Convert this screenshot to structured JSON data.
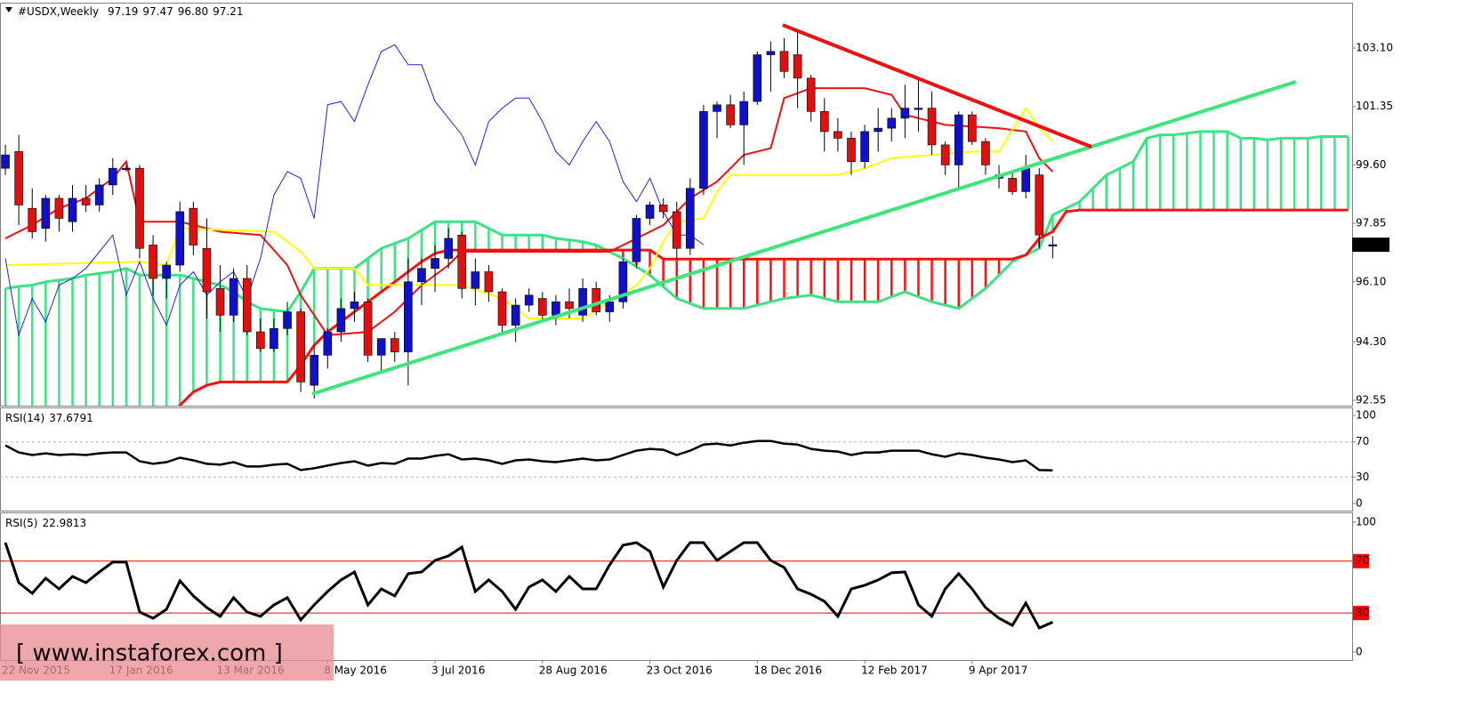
{
  "watermark": "[ www.instaforex.com ]",
  "chart_data": [
    {
      "type": "candlestick",
      "title": "#USDX,Weekly",
      "header_values": [
        "97.19",
        "97.47",
        "96.80",
        "97.21"
      ],
      "xlim": [
        -0.4,
        100.3
      ],
      "ylim": [
        92.39,
        104.46
      ],
      "yticks": [
        {
          "value": 103.1,
          "label": "103.10"
        },
        {
          "value": 101.35,
          "label": "101.35"
        },
        {
          "value": 99.6,
          "label": "99.60"
        },
        {
          "value": 97.85,
          "label": "97.85"
        },
        {
          "value": 96.1,
          "label": "96.10"
        },
        {
          "value": 94.3,
          "label": "94.30"
        },
        {
          "value": 92.55,
          "label": "92.55"
        }
      ],
      "xticks": [
        {
          "value": 0,
          "label": "22 Nov 2015"
        },
        {
          "value": 8,
          "label": "17 Jan 2016"
        },
        {
          "value": 16,
          "label": "13 Mar 2016"
        },
        {
          "value": 24,
          "label": "8 May 2016"
        },
        {
          "value": 32,
          "label": "3 Jul 2016"
        },
        {
          "value": 40,
          "label": "28 Aug 2016"
        },
        {
          "value": 48,
          "label": "23 Oct 2016"
        },
        {
          "value": 56,
          "label": "18 Dec 2016"
        },
        {
          "value": 64,
          "label": "12 Feb 2017"
        },
        {
          "value": 72,
          "label": "9 Apr 2017"
        }
      ],
      "up_color": "#1010c8",
      "down_color": "#e01010",
      "ohlc": [
        [
          99.5,
          100.2,
          99.3,
          99.9
        ],
        [
          100.0,
          100.5,
          97.8,
          98.4
        ],
        [
          98.3,
          98.9,
          97.4,
          97.6
        ],
        [
          97.7,
          98.7,
          97.3,
          98.6
        ],
        [
          98.6,
          98.7,
          97.6,
          98.0
        ],
        [
          97.9,
          99.0,
          97.6,
          98.6
        ],
        [
          98.6,
          99.0,
          98.2,
          98.4
        ],
        [
          98.4,
          99.2,
          98.2,
          99.0
        ],
        [
          99.0,
          99.8,
          98.7,
          99.5
        ],
        [
          99.5,
          99.6,
          99.4,
          99.5
        ],
        [
          99.5,
          99.6,
          96.8,
          97.1
        ],
        [
          97.2,
          97.5,
          95.7,
          96.2
        ],
        [
          96.2,
          96.7,
          95.6,
          96.6
        ],
        [
          96.6,
          98.5,
          96.4,
          98.2
        ],
        [
          98.3,
          98.5,
          96.9,
          97.2
        ],
        [
          97.1,
          98.0,
          95.0,
          95.8
        ],
        [
          95.9,
          96.6,
          94.6,
          95.1
        ],
        [
          95.1,
          96.5,
          94.9,
          96.2
        ],
        [
          96.2,
          96.6,
          94.5,
          94.6
        ],
        [
          94.6,
          95.0,
          94.0,
          94.1
        ],
        [
          94.1,
          95.0,
          94.0,
          94.7
        ],
        [
          94.7,
          95.5,
          94.5,
          95.2
        ],
        [
          95.2,
          95.3,
          92.8,
          93.1
        ],
        [
          93.0,
          94.2,
          92.6,
          93.9
        ],
        [
          93.9,
          94.7,
          93.5,
          94.6
        ],
        [
          94.6,
          95.6,
          94.3,
          95.3
        ],
        [
          95.3,
          95.8,
          94.9,
          95.5
        ],
        [
          95.5,
          95.6,
          93.7,
          93.9
        ],
        [
          93.9,
          94.4,
          93.4,
          94.4
        ],
        [
          94.4,
          94.6,
          93.7,
          94.0
        ],
        [
          94.0,
          96.8,
          93.0,
          96.1
        ],
        [
          96.1,
          96.8,
          95.4,
          96.5
        ],
        [
          96.5,
          97.2,
          95.8,
          96.8
        ],
        [
          96.8,
          97.7,
          96.5,
          97.4
        ],
        [
          97.5,
          97.6,
          95.6,
          95.9
        ],
        [
          95.9,
          96.8,
          95.4,
          96.4
        ],
        [
          96.4,
          96.6,
          95.5,
          95.8
        ],
        [
          95.8,
          95.9,
          94.5,
          94.8
        ],
        [
          94.8,
          95.6,
          94.3,
          95.4
        ],
        [
          95.4,
          95.9,
          95.2,
          95.7
        ],
        [
          95.6,
          95.8,
          94.9,
          95.1
        ],
        [
          95.1,
          95.7,
          94.8,
          95.5
        ],
        [
          95.5,
          95.9,
          95.0,
          95.3
        ],
        [
          95.1,
          96.2,
          94.9,
          95.9
        ],
        [
          95.9,
          96.1,
          95.1,
          95.2
        ],
        [
          95.2,
          95.7,
          94.9,
          95.5
        ],
        [
          95.5,
          96.8,
          95.3,
          96.7
        ],
        [
          96.7,
          98.1,
          96.5,
          98.0
        ],
        [
          98.0,
          98.5,
          97.8,
          98.4
        ],
        [
          98.4,
          98.6,
          98.0,
          98.2
        ],
        [
          98.2,
          98.5,
          96.8,
          97.1
        ],
        [
          97.1,
          99.2,
          96.9,
          98.9
        ],
        [
          98.9,
          101.4,
          98.7,
          101.2
        ],
        [
          101.2,
          101.5,
          100.4,
          101.4
        ],
        [
          101.4,
          101.7,
          100.7,
          100.8
        ],
        [
          100.8,
          101.8,
          99.6,
          101.5
        ],
        [
          101.5,
          103.0,
          101.4,
          102.9
        ],
        [
          102.9,
          103.3,
          101.8,
          103.0
        ],
        [
          103.0,
          103.4,
          102.2,
          102.4
        ],
        [
          102.9,
          103.6,
          101.3,
          102.2
        ],
        [
          102.2,
          102.3,
          100.9,
          101.2
        ],
        [
          101.2,
          101.6,
          100.0,
          100.6
        ],
        [
          100.6,
          101.0,
          100.0,
          100.4
        ],
        [
          100.4,
          100.6,
          99.3,
          99.7
        ],
        [
          99.7,
          100.8,
          99.5,
          100.6
        ],
        [
          100.6,
          101.3,
          100.0,
          100.7
        ],
        [
          100.7,
          101.3,
          100.3,
          101.0
        ],
        [
          101.0,
          102.0,
          100.4,
          101.3
        ],
        [
          101.3,
          102.2,
          100.6,
          101.3
        ],
        [
          101.3,
          101.8,
          99.9,
          100.2
        ],
        [
          100.2,
          100.3,
          99.3,
          99.6
        ],
        [
          99.6,
          101.2,
          98.9,
          101.1
        ],
        [
          101.1,
          101.2,
          100.2,
          100.3
        ],
        [
          100.3,
          100.4,
          99.3,
          99.6
        ],
        [
          99.2,
          99.6,
          98.9,
          99.3
        ],
        [
          99.2,
          99.4,
          98.7,
          98.8
        ],
        [
          98.8,
          99.9,
          98.6,
          99.5
        ],
        [
          99.3,
          99.5,
          97.1,
          97.5
        ],
        [
          97.19,
          97.47,
          96.8,
          97.21
        ]
      ],
      "cloud": {
        "up_color": "#3ce384",
        "down_color": "#ff1010",
        "span_a": [
          95.9,
          95.96,
          96.0,
          96.1,
          96.15,
          96.2,
          96.3,
          96.35,
          96.4,
          96.5,
          96.3,
          96.3,
          96.3,
          96.3,
          96.2,
          96.1,
          96.0,
          95.8,
          95.5,
          95.3,
          95.25,
          95.2,
          95.8,
          96.5,
          96.5,
          96.5,
          96.5,
          96.8,
          97.1,
          97.25,
          97.4,
          97.65,
          97.9,
          97.9,
          97.9,
          97.9,
          97.7,
          97.5,
          97.5,
          97.5,
          97.5,
          97.4,
          97.35,
          97.3,
          97.2,
          97.0,
          96.8,
          96.55,
          96.3,
          95.95,
          95.6,
          95.45,
          95.3,
          95.3,
          95.3,
          95.3,
          95.4,
          95.5,
          95.6,
          95.65,
          95.7,
          95.6,
          95.5,
          95.5,
          95.5,
          95.5,
          95.65,
          95.8,
          95.65,
          95.5,
          95.4,
          95.3,
          95.6,
          95.9,
          96.3,
          96.7,
          96.9,
          97.1,
          98.1,
          98.3,
          98.5,
          98.9,
          99.3,
          99.5,
          99.7,
          100.4,
          100.5,
          100.5,
          100.55,
          100.6,
          100.6,
          100.6,
          100.4,
          100.4,
          100.35,
          100.4,
          100.4,
          100.4,
          100.45,
          100.45,
          100.45
        ],
        "span_b": [
          91.8,
          91.8,
          91.8,
          91.8,
          91.8,
          91.8,
          91.8,
          91.8,
          91.8,
          91.8,
          91.8,
          91.8,
          91.8,
          92.4,
          92.8,
          93.0,
          93.1,
          93.1,
          93.1,
          93.1,
          93.1,
          93.1,
          93.6,
          94.2,
          94.6,
          94.9,
          95.2,
          95.5,
          95.8,
          96.1,
          96.4,
          96.7,
          96.95,
          97.05,
          97.05,
          97.05,
          97.05,
          97.05,
          97.05,
          97.05,
          97.05,
          97.05,
          97.05,
          97.05,
          97.05,
          97.05,
          97.05,
          97.05,
          97.05,
          96.78,
          96.78,
          96.78,
          96.78,
          96.78,
          96.78,
          96.78,
          96.78,
          96.78,
          96.78,
          96.78,
          96.78,
          96.78,
          96.78,
          96.78,
          96.78,
          96.78,
          96.78,
          96.78,
          96.78,
          96.78,
          96.78,
          96.78,
          96.78,
          96.78,
          96.78,
          96.78,
          96.9,
          97.4,
          97.6,
          98.2,
          98.25,
          98.25,
          98.25,
          98.25,
          98.25,
          98.25,
          98.25,
          98.25,
          98.25,
          98.25,
          98.25,
          98.25,
          98.25,
          98.25,
          98.25,
          98.25,
          98.25,
          98.25,
          98.25,
          98.25,
          98.25
        ]
      },
      "series": [
        {
          "color": "#ee1111",
          "width": 2,
          "x": [
            0,
            2,
            4,
            6,
            8,
            9,
            10,
            13,
            16,
            19,
            21,
            22,
            24,
            27,
            29,
            31,
            33,
            34,
            45,
            49,
            51,
            53,
            55,
            57,
            58,
            60,
            64,
            66,
            67,
            70,
            74,
            76,
            77,
            78
          ],
          "values": [
            97.4,
            97.8,
            98.3,
            98.6,
            99.2,
            99.7,
            97.9,
            97.9,
            97.6,
            97.5,
            96.6,
            95.7,
            94.5,
            94.6,
            95.2,
            96.0,
            96.6,
            97.0,
            97.0,
            97.8,
            98.6,
            99.1,
            99.9,
            100.1,
            101.6,
            101.9,
            101.9,
            101.7,
            101.1,
            100.8,
            100.7,
            100.6,
            99.8,
            99.4
          ]
        },
        {
          "color": "#ffff00",
          "width": 2,
          "x": [
            0,
            10,
            12,
            13,
            20,
            22,
            23,
            26,
            27,
            34,
            37,
            39,
            43,
            45,
            47,
            48,
            49,
            50,
            52,
            53,
            54,
            57,
            62,
            64,
            66,
            69,
            72,
            74,
            76,
            77,
            78
          ],
          "values": [
            96.6,
            96.7,
            96.6,
            97.7,
            97.6,
            97.0,
            96.5,
            96.5,
            96.0,
            96.0,
            95.6,
            95.0,
            95.0,
            95.5,
            96.0,
            96.5,
            97.3,
            97.9,
            98.0,
            98.8,
            99.3,
            99.3,
            99.3,
            99.5,
            99.8,
            99.9,
            100.0,
            100.0,
            101.3,
            100.7,
            100.3
          ]
        },
        {
          "color": "#2222dd",
          "width": 1,
          "values": [
            96.8,
            94.5,
            95.6,
            94.9,
            96.0,
            96.2,
            96.5,
            97.0,
            97.5,
            95.7,
            96.7,
            95.6,
            94.8,
            96.0,
            96.4,
            95.7,
            96.1,
            96.4,
            95.6,
            96.8,
            98.7,
            99.4,
            99.2,
            98.0,
            101.4,
            101.5,
            100.9,
            102.0,
            103.0,
            103.2,
            102.6,
            102.6,
            101.5,
            101.0,
            100.5,
            99.6,
            100.9,
            101.3,
            101.6,
            101.6,
            100.9,
            100.0,
            99.6,
            100.3,
            100.9,
            100.3,
            99.1,
            98.5,
            99.2,
            98.2,
            97.5,
            97.5,
            97.21
          ]
        }
      ],
      "trendlines": [
        {
          "color": "#3ce67a",
          "x": [
            22.85,
            96.1
          ],
          "values": [
            92.74,
            102.09
          ]
        },
        {
          "color": "#ee1111",
          "x": [
            57.9,
            80.9
          ],
          "values": [
            103.79,
            100.14
          ]
        }
      ]
    },
    {
      "type": "line",
      "title": "RSI(14)",
      "color": "#000000",
      "ylim": [
        -8.1,
        109.1
      ],
      "yticks": [
        100,
        70,
        30,
        0
      ],
      "levels": [
        70,
        30
      ],
      "level_style": "dashed",
      "level_color": "#b0b0b0",
      "values": [
        66,
        58,
        55,
        57,
        55,
        56,
        55,
        57,
        58,
        58,
        48,
        45,
        47,
        52,
        49,
        45,
        44,
        47,
        42,
        42,
        44,
        45,
        38,
        40,
        43,
        46,
        48,
        43,
        46,
        45,
        51,
        51,
        54,
        56,
        50,
        51,
        49,
        45,
        49,
        50,
        48,
        47,
        49,
        51,
        49,
        50,
        55,
        60,
        62,
        61,
        55,
        60,
        67,
        68,
        66,
        69,
        71,
        71,
        68,
        67,
        62,
        60,
        59,
        55,
        58,
        58,
        60,
        60,
        60,
        56,
        53,
        57,
        55,
        52,
        50,
        47,
        49,
        38,
        37.6791
      ]
    },
    {
      "type": "line",
      "title": "RSI(5)",
      "color": "#000000",
      "ylim": [
        -6.2,
        107.5
      ],
      "yticks": [
        100,
        70,
        30,
        0
      ],
      "levels": [
        70,
        30
      ],
      "level_style": "solid",
      "level_color": "#ff0000",
      "values": [
        84.2,
        53.4,
        45.2,
        56.8,
        48.6,
        58.2,
        53.4,
        61.6,
        69.2,
        69.2,
        30.8,
        26.0,
        32.9,
        54.8,
        43.2,
        34.2,
        27.4,
        41.8,
        30.8,
        27.4,
        36.3,
        41.8,
        24.7,
        36.3,
        46.6,
        55.5,
        61.6,
        36.3,
        48.6,
        43.2,
        60.3,
        61.6,
        70.5,
        74.0,
        80.8,
        46.6,
        55.5,
        46.6,
        32.9,
        50.0,
        55.5,
        46.6,
        58.2,
        48.6,
        48.6,
        67.1,
        82.2,
        84.2,
        77.4,
        50.0,
        70.5,
        84.2,
        84.2,
        70.5,
        77.4,
        84.2,
        84.2,
        70.5,
        65.1,
        48.6,
        44.5,
        39.0,
        27.4,
        48.6,
        51.4,
        55.5,
        61.0,
        61.6,
        36.3,
        27.4,
        48.6,
        60.3,
        48.6,
        34.2,
        26.0,
        20.5,
        37.7,
        18.5,
        22.9813
      ]
    }
  ]
}
